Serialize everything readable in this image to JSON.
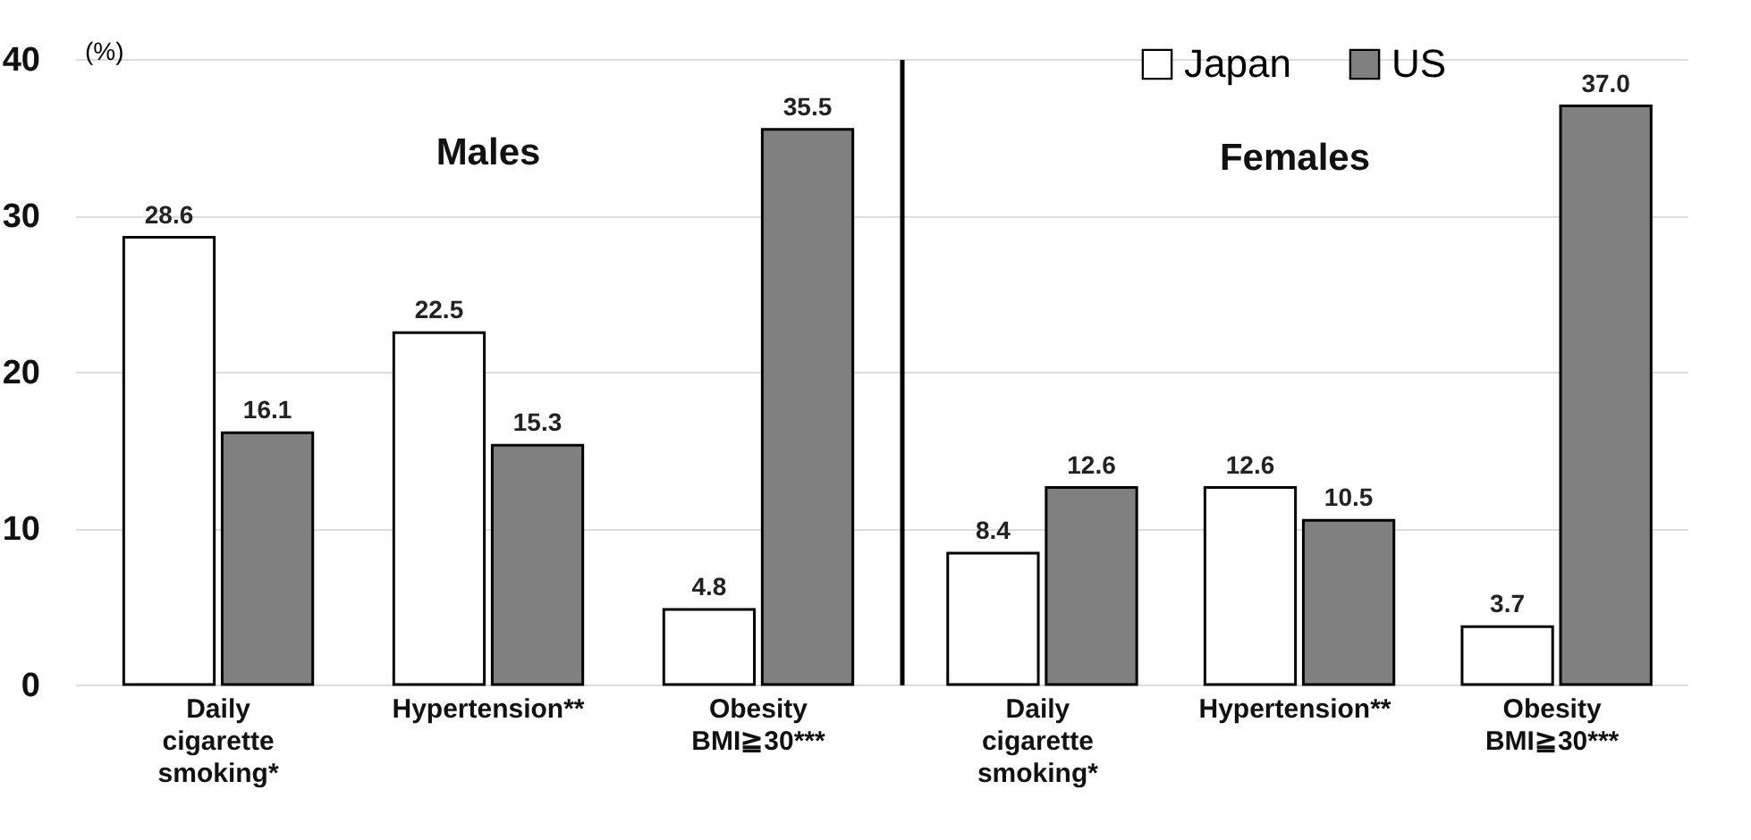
{
  "chart_data": [
    {
      "type": "bar",
      "title": "Males",
      "ylabel": "(%)",
      "categories": [
        "Daily cigarette smoking*",
        "Hypertension**",
        "Obesity BMI≧30***"
      ],
      "series": [
        {
          "color": "#ffffff",
          "values": [
            28.6,
            22.5,
            4.8
          ],
          "value_labels": [
            "28.6",
            "22.5",
            "4.8"
          ]
        },
        {
          "color": "#808080",
          "values": [
            16.1,
            15.3,
            35.5
          ],
          "value_labels": [
            "16.1",
            "15.3",
            "35.5"
          ]
        }
      ],
      "ylim": [
        0,
        40
      ],
      "yticks": [
        0,
        10,
        20,
        30,
        40
      ],
      "grid": "y",
      "legend": false
    },
    {
      "type": "bar",
      "title": "Females",
      "categories": [
        "Daily cigarette smoking*",
        "Hypertension**",
        "Obesity BMI≧30***"
      ],
      "series": [
        {
          "name": "Japan",
          "color": "#ffffff",
          "values": [
            8.4,
            12.6,
            3.7
          ],
          "value_labels": [
            "8.4",
            "12.6",
            "3.7"
          ]
        },
        {
          "name": "US",
          "color": "#808080",
          "values": [
            12.6,
            10.5,
            37.0
          ],
          "value_labels": [
            "12.6",
            "10.5",
            "37.0"
          ]
        }
      ],
      "ylim": [
        0,
        40
      ],
      "yticks": [
        0,
        10,
        20,
        30,
        40
      ],
      "grid": "y",
      "legend": "top right",
      "tick_labels": "x"
    }
  ]
}
